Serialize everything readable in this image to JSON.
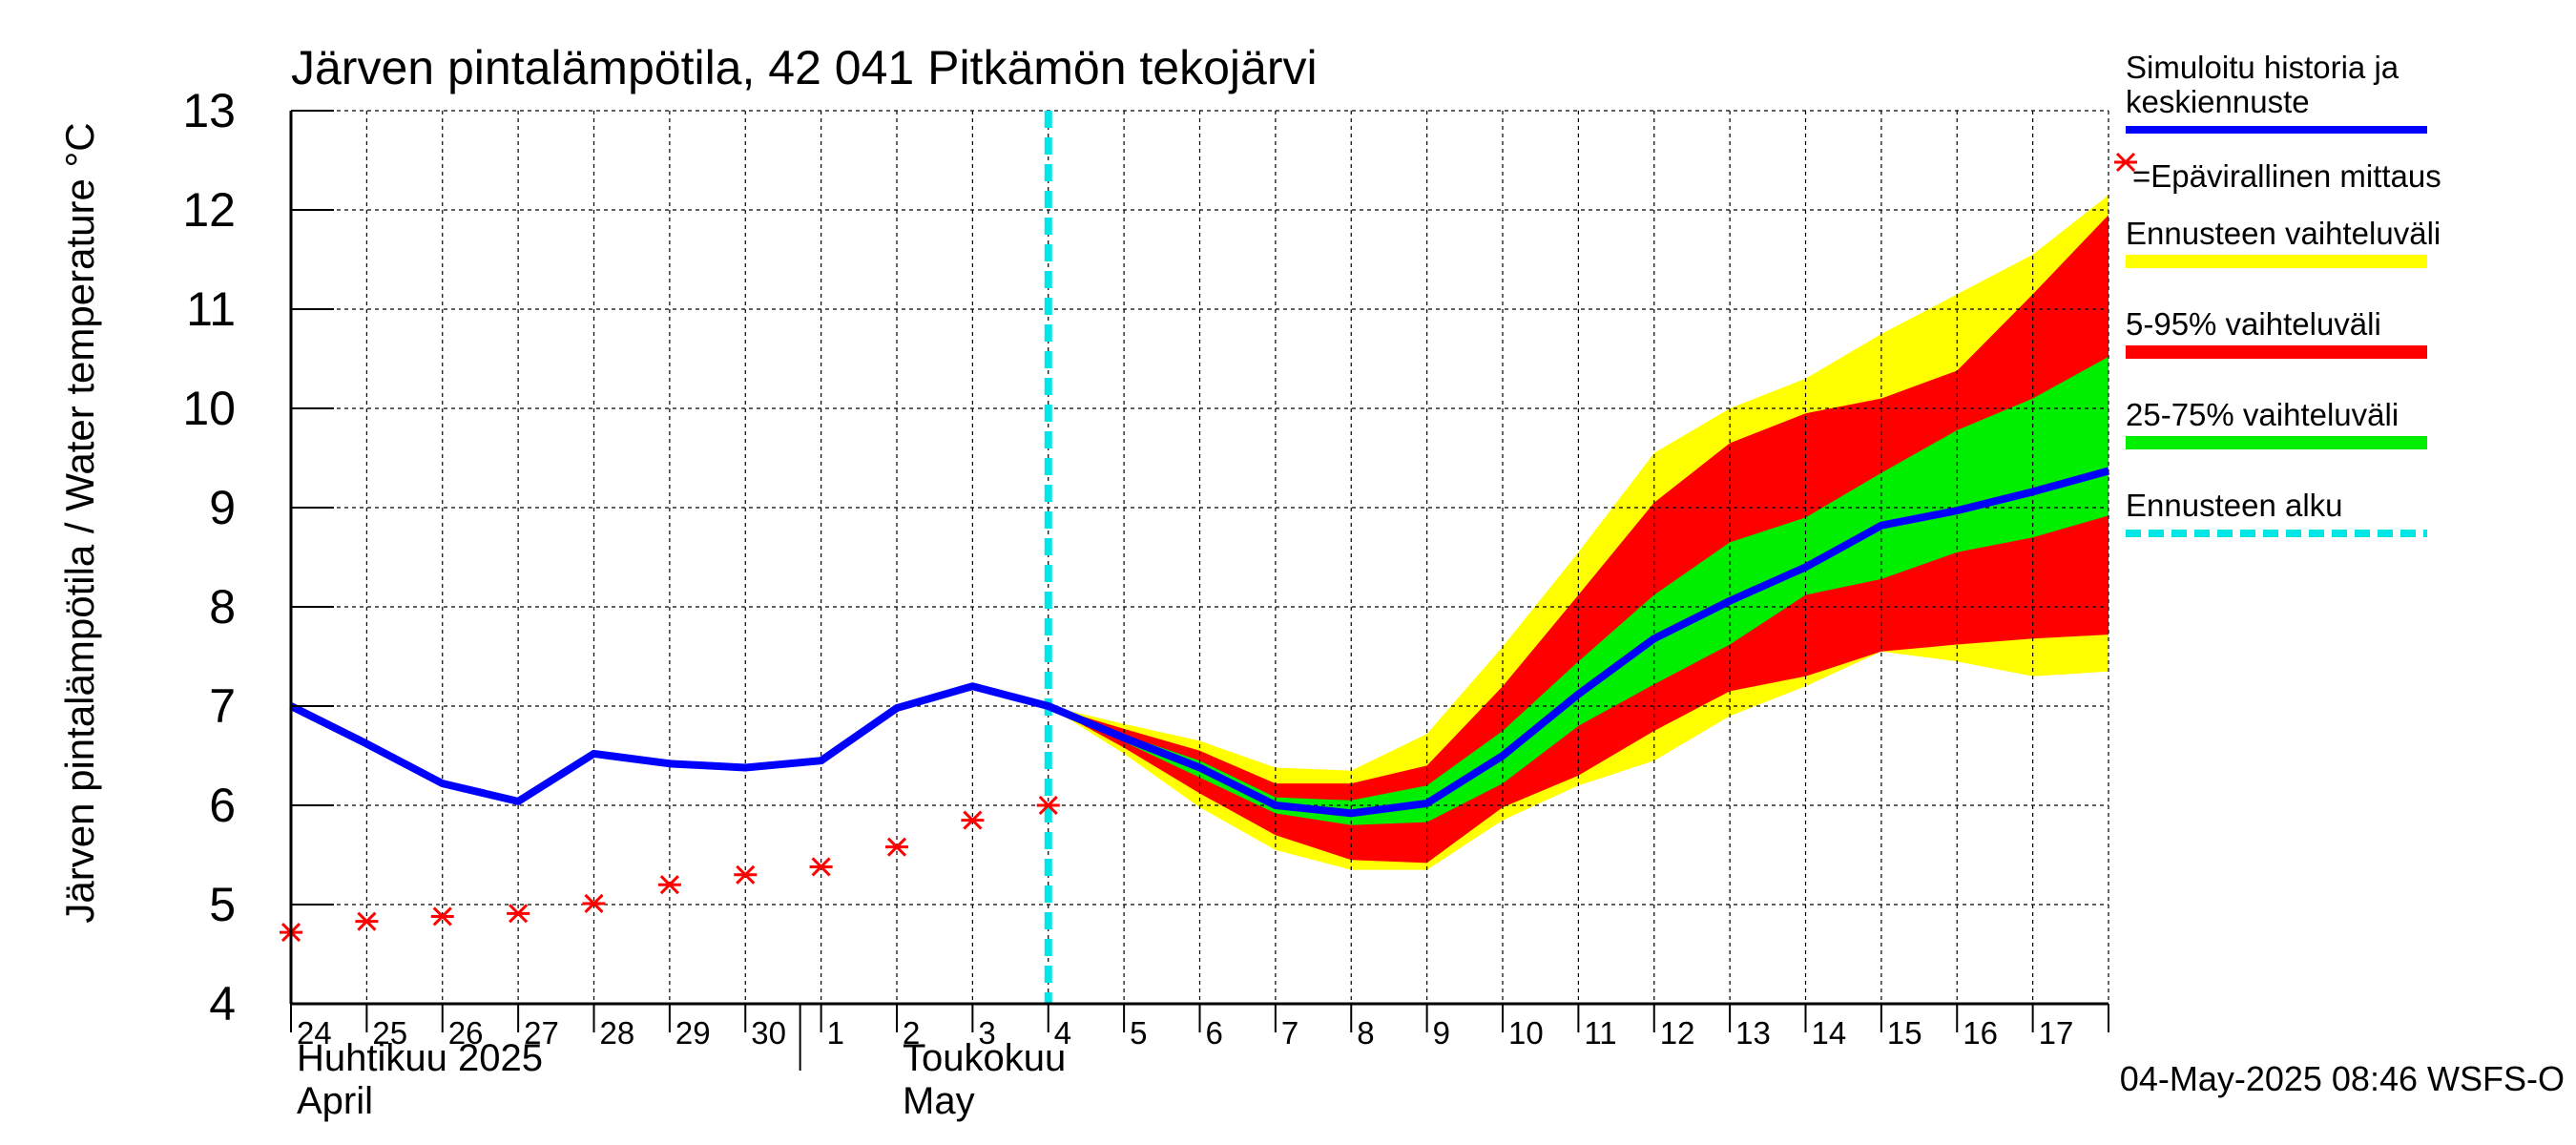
{
  "chart_data": {
    "type": "line",
    "title": "Järven pintalämpötila, 42 041 Pitkämön tekojärvi",
    "ylabel": "Järven pintalämpötila / Water temperature °C",
    "xlabel": "",
    "ylim": [
      4,
      13
    ],
    "yticks": [
      "4",
      "5",
      "6",
      "7",
      "8",
      "9",
      "10",
      "11",
      "12",
      "13"
    ],
    "x_day_range": [
      0,
      24
    ],
    "xticks": [
      {
        "d": 0,
        "label": "24"
      },
      {
        "d": 1,
        "label": "25"
      },
      {
        "d": 2,
        "label": "26"
      },
      {
        "d": 3,
        "label": "27"
      },
      {
        "d": 4,
        "label": "28"
      },
      {
        "d": 5,
        "label": "29"
      },
      {
        "d": 6,
        "label": "30"
      },
      {
        "d": 7,
        "label": "1"
      },
      {
        "d": 8,
        "label": "2"
      },
      {
        "d": 9,
        "label": "3"
      },
      {
        "d": 10,
        "label": "4"
      },
      {
        "d": 11,
        "label": "5"
      },
      {
        "d": 12,
        "label": "6"
      },
      {
        "d": 13,
        "label": "7"
      },
      {
        "d": 14,
        "label": "8"
      },
      {
        "d": 15,
        "label": "9"
      },
      {
        "d": 16,
        "label": "10"
      },
      {
        "d": 17,
        "label": "11"
      },
      {
        "d": 18,
        "label": "12"
      },
      {
        "d": 19,
        "label": "13"
      },
      {
        "d": 20,
        "label": "14"
      },
      {
        "d": 21,
        "label": "15"
      },
      {
        "d": 22,
        "label": "16"
      },
      {
        "d": 23,
        "label": "17"
      }
    ],
    "month_labels": [
      {
        "d": 0,
        "fi": "Huhtikuu  2025",
        "en": "April"
      },
      {
        "d": 8,
        "fi": "Toukokuu",
        "en": "May"
      }
    ],
    "forecast_start_day": 10,
    "series": [
      {
        "name": "Simuloitu historia ja keskiennuste",
        "color": "#0000ff",
        "x": [
          0,
          1,
          2,
          3,
          4,
          5,
          6,
          7,
          8,
          9,
          10,
          11,
          12,
          13,
          14,
          15,
          16,
          17,
          18,
          19,
          20,
          21,
          22,
          23,
          24
        ],
        "values": [
          7.0,
          6.62,
          6.22,
          6.04,
          6.52,
          6.42,
          6.38,
          6.45,
          6.98,
          7.2,
          7.0,
          6.68,
          6.38,
          6.0,
          5.92,
          6.02,
          6.5,
          7.12,
          7.68,
          8.06,
          8.4,
          8.82,
          8.97,
          9.16,
          9.37
        ]
      },
      {
        "name": "Epävirallinen mittaus",
        "type": "scatter",
        "color": "#ff0000",
        "x": [
          0,
          1,
          2,
          3,
          4,
          5,
          6,
          7,
          8,
          9,
          10
        ],
        "values": [
          4.72,
          4.83,
          4.88,
          4.91,
          5.01,
          5.2,
          5.3,
          5.38,
          5.58,
          5.85,
          6.0
        ]
      }
    ],
    "bands": [
      {
        "name": "Ennusteen vaihteluväli",
        "color": "#ffff00",
        "x": [
          10,
          11,
          12,
          13,
          14,
          15,
          16,
          17,
          18,
          19,
          20,
          21,
          22,
          23,
          24
        ],
        "low": [
          7.0,
          6.52,
          5.98,
          5.55,
          5.35,
          5.35,
          5.85,
          6.2,
          6.45,
          6.9,
          7.2,
          7.55,
          7.45,
          7.3,
          7.35
        ],
        "high": [
          7.0,
          6.82,
          6.65,
          6.38,
          6.35,
          6.72,
          7.6,
          8.55,
          9.55,
          10.0,
          10.3,
          10.75,
          11.15,
          11.55,
          12.15
        ]
      },
      {
        "name": "5-95% vaihteluväli",
        "color": "#ff0000",
        "x": [
          10,
          11,
          12,
          13,
          14,
          15,
          16,
          17,
          18,
          19,
          20,
          21,
          22,
          23,
          24
        ],
        "low": [
          7.0,
          6.58,
          6.12,
          5.7,
          5.45,
          5.42,
          5.98,
          6.3,
          6.75,
          7.15,
          7.3,
          7.55,
          7.62,
          7.68,
          7.72
        ],
        "high": [
          7.0,
          6.77,
          6.55,
          6.22,
          6.22,
          6.4,
          7.2,
          8.12,
          9.05,
          9.65,
          9.95,
          10.1,
          10.38,
          11.15,
          11.95
        ]
      },
      {
        "name": "25-75% vaihteluväli",
        "color": "#00ee00",
        "x": [
          10,
          11,
          12,
          13,
          14,
          15,
          16,
          17,
          18,
          19,
          20,
          21,
          22,
          23,
          24
        ],
        "low": [
          7.0,
          6.64,
          6.28,
          5.92,
          5.8,
          5.83,
          6.22,
          6.8,
          7.22,
          7.62,
          8.12,
          8.28,
          8.55,
          8.7,
          8.92
        ],
        "high": [
          7.0,
          6.71,
          6.45,
          6.08,
          6.05,
          6.2,
          6.75,
          7.45,
          8.12,
          8.65,
          8.9,
          9.35,
          9.78,
          10.1,
          10.52
        ]
      }
    ],
    "legend": {
      "position": "right",
      "items": [
        {
          "label_lines": [
            "Simuloitu historia ja",
            "keskiennuste"
          ],
          "color": "#0000ff",
          "kind": "line"
        },
        {
          "label_lines": [
            "=Epävirallinen mittaus"
          ],
          "color": "#ff0000",
          "kind": "star"
        },
        {
          "label_lines": [
            "Ennusteen vaihteluväli"
          ],
          "color": "#ffff00",
          "kind": "band"
        },
        {
          "label_lines": [
            "5-95% vaihteluväli"
          ],
          "color": "#ff0000",
          "kind": "band"
        },
        {
          "label_lines": [
            "25-75% vaihteluväli"
          ],
          "color": "#00ee00",
          "kind": "band"
        },
        {
          "label_lines": [
            "Ennusteen alku"
          ],
          "color": "#00e5e5",
          "kind": "dashed"
        }
      ]
    },
    "footer": "04-May-2025 08:46 WSFS-O"
  }
}
